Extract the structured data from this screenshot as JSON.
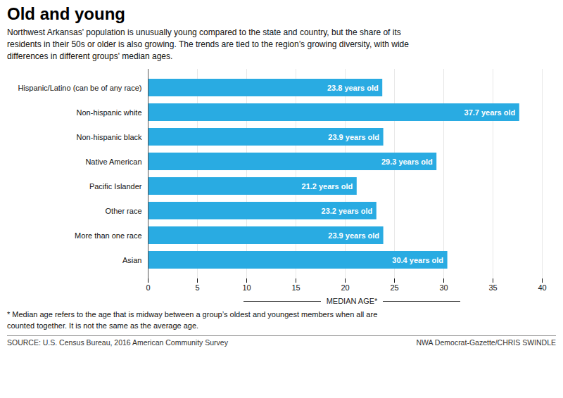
{
  "chart_data": {
    "type": "bar",
    "orientation": "horizontal",
    "title": "Old and young",
    "subtitle": "Northwest Arkansas' population is unusually young compared to the state and country, but the share of its\nresidents in their 50s or older is also growing. The trends are tied to the region’s growing diversity, with wide\ndifferences in different groups' median ages.",
    "categories": [
      "Hispanic/Latino (can be of any race)",
      "Non-hispanic white",
      "Non-hispanic black",
      "Native American",
      "Pacific Islander",
      "Other race",
      "More than one race",
      "Asian"
    ],
    "values": [
      23.8,
      37.7,
      23.9,
      29.3,
      21.2,
      23.2,
      23.9,
      30.4
    ],
    "value_labels": [
      "23.8 years old",
      "37.7 years old",
      "23.9 years old",
      "29.3 years old",
      "21.2 years old",
      "23.2 years old",
      "23.9 years old",
      "30.4 years old"
    ],
    "data_labels": true,
    "color": "#29ABE2",
    "xlabel": "MEDIAN AGE*",
    "xlim": [
      0,
      40
    ],
    "xticks": [
      0,
      5,
      10,
      15,
      20,
      25,
      30,
      35,
      40
    ],
    "grid": true,
    "footnote": "* Median age refers to the age that is midway between a group’s oldest and youngest members when all are\ncounted together. It is not the same as the average age.",
    "source": "SOURCE: U.S. Census Bureau, 2016 American Community Survey",
    "credit": "NWA Democrat-Gazette/CHRIS SWINDLE"
  }
}
